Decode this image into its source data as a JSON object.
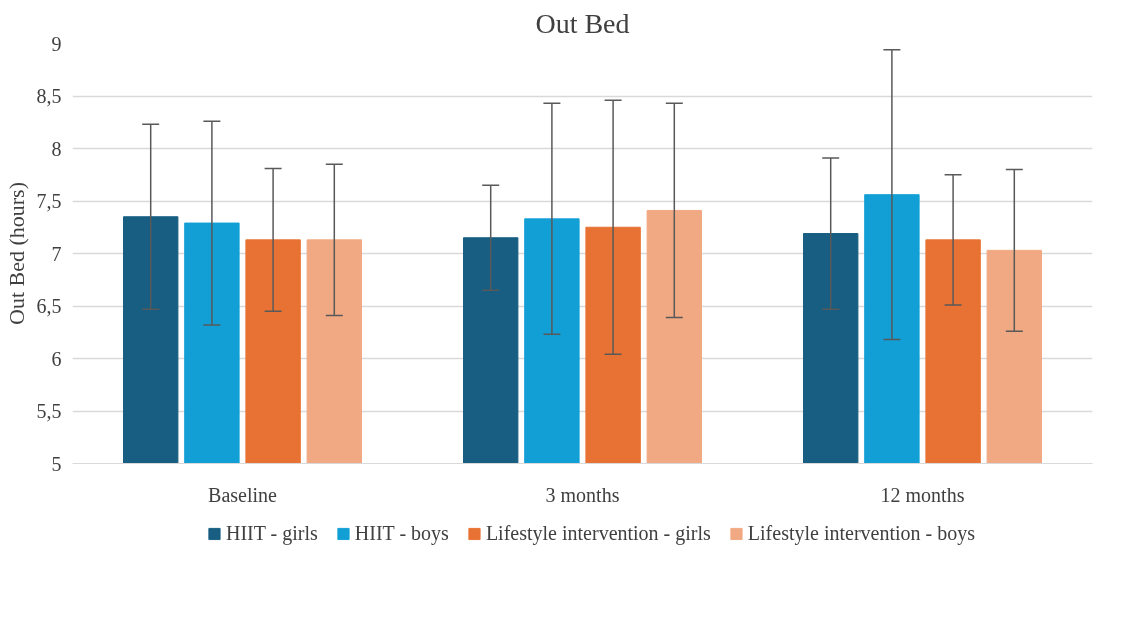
{
  "chart_data": {
    "type": "bar",
    "title": "Out Bed",
    "ylabel": "Out Bed (hours)",
    "categories": [
      "Baseline",
      "3 months",
      "12 months"
    ],
    "series": [
      {
        "name": "HIIT - girls",
        "color": "#175e82",
        "values": [
          7.35,
          7.15,
          7.19
        ],
        "errors": [
          0.88,
          0.5,
          0.72
        ]
      },
      {
        "name": "HIIT - boys",
        "color": "#129fd6",
        "values": [
          7.29,
          7.33,
          7.56
        ],
        "errors": [
          0.97,
          1.1,
          1.38
        ]
      },
      {
        "name": "Lifestyle intervention - girls",
        "color": "#e87233",
        "values": [
          7.13,
          7.25,
          7.13
        ],
        "errors": [
          0.68,
          1.21,
          0.62
        ]
      },
      {
        "name": "Lifestyle intervention - boys",
        "color": "#f1a983",
        "values": [
          7.13,
          7.41,
          7.03
        ],
        "errors": [
          0.72,
          1.02,
          0.77
        ]
      }
    ],
    "ylim": [
      5,
      9
    ],
    "yticks": [
      5,
      {
        "value": 5.5,
        "label": "5,5"
      },
      6,
      {
        "value": 6.5,
        "label": "6,5"
      },
      7,
      {
        "value": 7.5,
        "label": "7,5"
      },
      8,
      {
        "value": 8.5,
        "label": "8,5"
      },
      9
    ],
    "grid": "y",
    "legend": "bottom"
  }
}
